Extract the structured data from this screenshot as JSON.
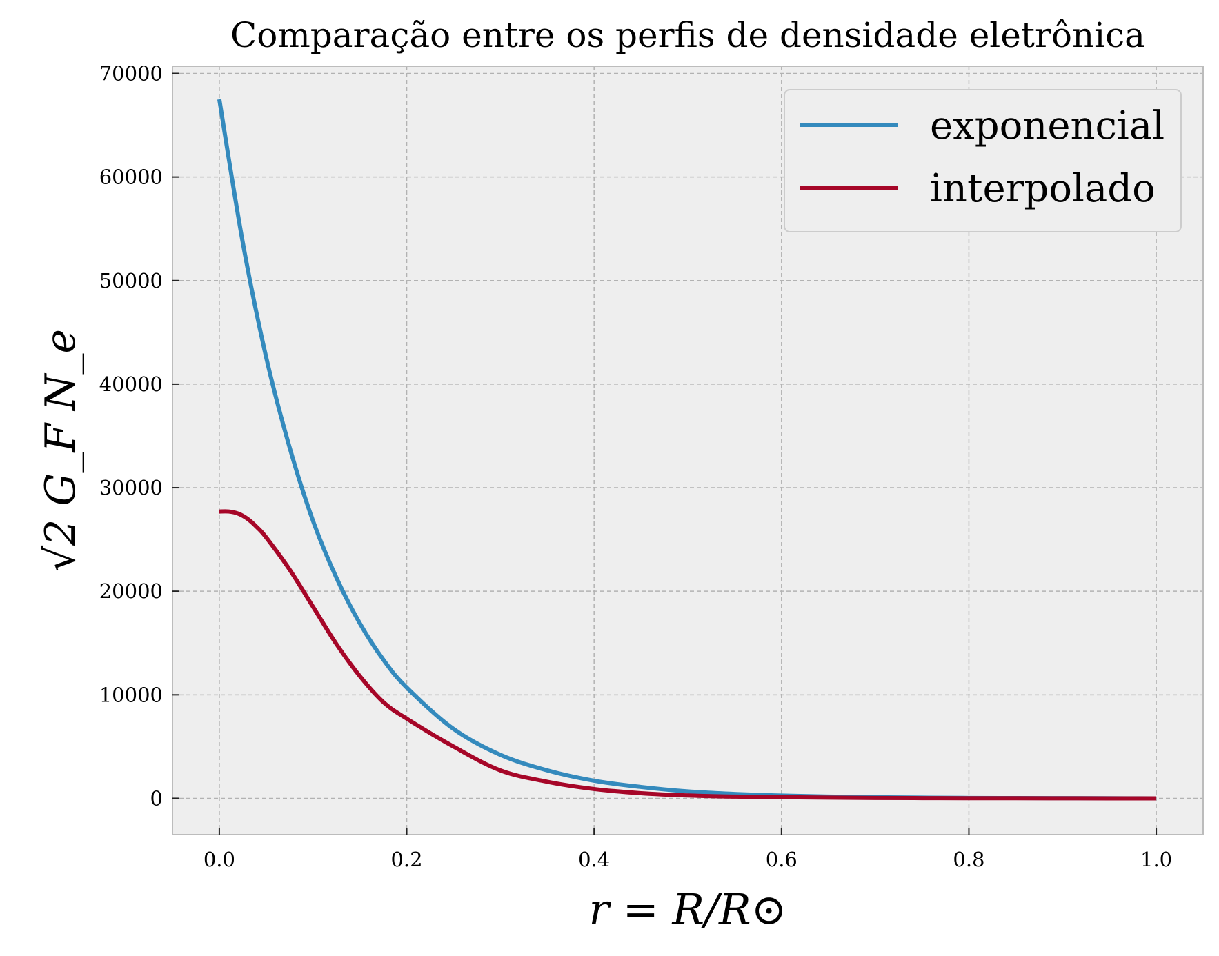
{
  "chart_data": {
    "type": "line",
    "title": "Comparação entre os perfis de densidade eletrônica",
    "xlabel": "r = R/R⊙",
    "ylabel": "√2 G_F N_e",
    "xlim": [
      -0.05,
      1.05
    ],
    "ylim": [
      -3500,
      70700
    ],
    "x_ticks": [
      0.0,
      0.2,
      0.4,
      0.6,
      0.8,
      1.0
    ],
    "x_tick_labels": [
      "0.0",
      "0.2",
      "0.4",
      "0.6",
      "0.8",
      "1.0"
    ],
    "y_ticks": [
      0,
      10000,
      20000,
      30000,
      40000,
      50000,
      60000,
      70000
    ],
    "y_tick_labels": [
      "0",
      "10000",
      "20000",
      "30000",
      "40000",
      "50000",
      "60000",
      "70000"
    ],
    "grid": true,
    "legend_position": "top-right",
    "series": [
      {
        "name": "exponencial",
        "color": "#348ABD",
        "x": [
          0.0,
          0.025,
          0.05,
          0.075,
          0.1,
          0.125,
          0.15,
          0.175,
          0.2,
          0.25,
          0.3,
          0.35,
          0.4,
          0.45,
          0.5,
          0.55,
          0.6,
          0.65,
          0.7,
          0.75,
          0.8,
          0.85,
          0.9,
          0.95,
          1.0
        ],
        "y": [
          67500,
          53700,
          42600,
          33900,
          26800,
          21300,
          16900,
          13400,
          10700,
          6700,
          4200,
          2700,
          1700,
          1100,
          670,
          420,
          270,
          170,
          110,
          70,
          40,
          30,
          20,
          10,
          0
        ]
      },
      {
        "name": "interpolado",
        "color": "#A60628",
        "x": [
          0.0,
          0.01,
          0.02,
          0.03,
          0.04,
          0.05,
          0.075,
          0.1,
          0.125,
          0.15,
          0.175,
          0.2,
          0.25,
          0.3,
          0.35,
          0.4,
          0.45,
          0.5,
          0.55,
          0.6,
          0.65,
          0.7,
          0.75,
          0.8,
          0.85,
          0.9,
          0.95,
          1.0
        ],
        "y": [
          27700,
          27700,
          27500,
          27000,
          26200,
          25200,
          22100,
          18500,
          14900,
          11800,
          9300,
          7700,
          5000,
          2700,
          1600,
          900,
          500,
          280,
          170,
          110,
          70,
          40,
          25,
          15,
          10,
          5,
          0,
          0
        ]
      }
    ]
  }
}
